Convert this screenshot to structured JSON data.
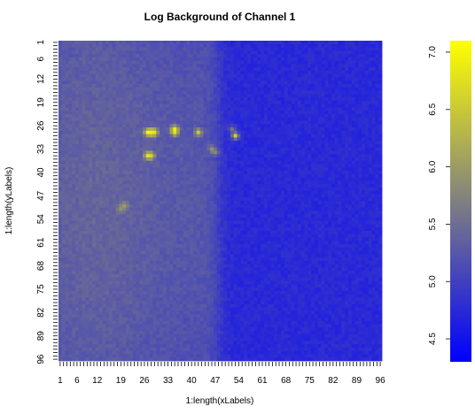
{
  "chart_data": {
    "type": "heatmap",
    "title": "Log Background of Channel 1",
    "xlabel": "1:length(xLabels)",
    "ylabel": "1:length(yLabels)",
    "x_range": [
      1,
      96
    ],
    "y_range": [
      1,
      96
    ],
    "x_ticks": [
      "1",
      "6",
      "12",
      "19",
      "26",
      "33",
      "40",
      "47",
      "54",
      "61",
      "68",
      "75",
      "82",
      "89",
      "96"
    ],
    "y_ticks": [
      "1",
      "6",
      "12",
      "19",
      "26",
      "33",
      "40",
      "47",
      "54",
      "61",
      "68",
      "75",
      "82",
      "89",
      "96"
    ],
    "y_reversed": true,
    "colorscale": {
      "low_color": "#0000ff",
      "mid_color": "#808080",
      "high_color": "#ffff00",
      "range": [
        4.3,
        7.1
      ],
      "ticks": [
        "4.5",
        "5.0",
        "5.5",
        "6.0",
        "6.5",
        "7.0"
      ]
    },
    "background_level": 4.75,
    "left_region": {
      "x_range": [
        1,
        48
      ],
      "level": 5.4,
      "note_peak_x": 12
    },
    "hotspots": [
      {
        "x": 27,
        "y": 28,
        "value": 7.0
      },
      {
        "x": 28,
        "y": 28,
        "value": 6.9
      },
      {
        "x": 29,
        "y": 28,
        "value": 6.8
      },
      {
        "x": 35,
        "y": 27,
        "value": 6.9
      },
      {
        "x": 35,
        "y": 28,
        "value": 6.8
      },
      {
        "x": 42,
        "y": 28,
        "value": 6.5
      },
      {
        "x": 53,
        "y": 29,
        "value": 6.6
      },
      {
        "x": 27,
        "y": 35,
        "value": 6.8
      },
      {
        "x": 28,
        "y": 35,
        "value": 6.6
      },
      {
        "x": 46,
        "y": 33,
        "value": 5.9
      },
      {
        "x": 47,
        "y": 34,
        "value": 5.8
      },
      {
        "x": 20,
        "y": 50,
        "value": 6.0
      },
      {
        "x": 19,
        "y": 51,
        "value": 5.9
      },
      {
        "x": 52,
        "y": 27,
        "value": 5.6
      }
    ]
  }
}
